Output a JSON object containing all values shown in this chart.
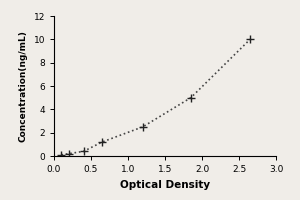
{
  "x_data": [
    0.1,
    0.2,
    0.4,
    0.65,
    1.2,
    1.85,
    2.65
  ],
  "y_data": [
    0.1,
    0.2,
    0.4,
    1.2,
    2.5,
    5.0,
    10.0
  ],
  "xlabel": "Optical Density",
  "ylabel": "Concentration(ng/mL)",
  "xlim": [
    0,
    3
  ],
  "ylim": [
    0,
    12
  ],
  "xticks": [
    0,
    0.5,
    1,
    1.5,
    2,
    2.5,
    3
  ],
  "yticks": [
    0,
    2,
    4,
    6,
    8,
    10,
    12
  ],
  "line_color": "#444444",
  "marker": "+",
  "marker_size": 6,
  "marker_color": "#222222",
  "linestyle": "dotted",
  "linewidth": 1.2,
  "background_color": "#f0ede8",
  "ylabel_fontsize": 6.5,
  "xlabel_fontsize": 7.5,
  "tick_fontsize": 6.5,
  "label_fontfamily": "DejaVu Sans"
}
